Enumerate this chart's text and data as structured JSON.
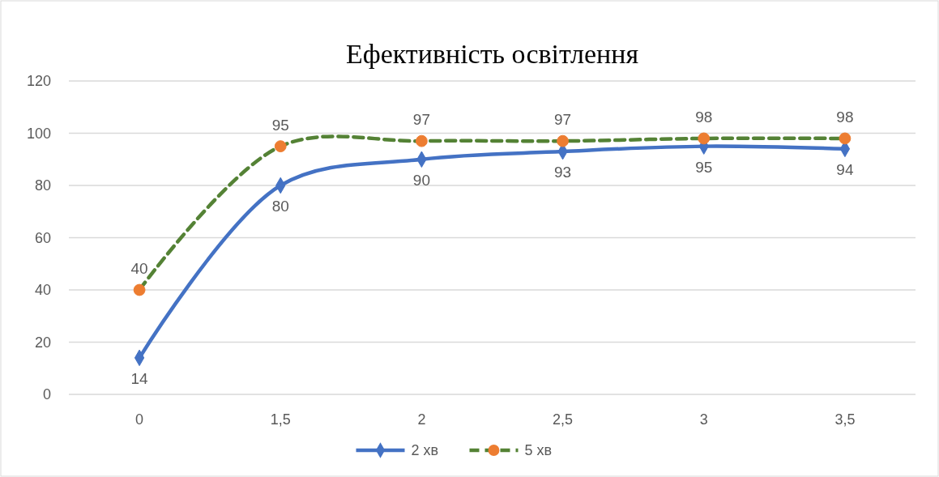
{
  "chart_data": {
    "type": "line",
    "title": "Ефективність освітлення",
    "categories": [
      "0",
      "1,5",
      "2",
      "2,5",
      "3",
      "3,5"
    ],
    "series": [
      {
        "name": "2 хв",
        "color": "#4472c4",
        "marker": "diamond",
        "line_style": "solid",
        "values": [
          14,
          80,
          90,
          93,
          95,
          94
        ]
      },
      {
        "name": "5 хв",
        "color": "#548235",
        "colors": [
          "#ed7d31",
          "#ed7d31",
          "#ed7d31",
          "#ed7d31",
          "#ed7d31",
          "#ed7d31"
        ],
        "marker": "circle",
        "line_style": "dashed",
        "values": [
          40,
          95,
          97,
          97,
          98,
          98
        ]
      }
    ],
    "ylim": [
      0,
      120
    ],
    "yticks": [
      0,
      20,
      40,
      60,
      80,
      100,
      120
    ],
    "grid": "y",
    "legend": "bottom",
    "data_labels": true
  }
}
